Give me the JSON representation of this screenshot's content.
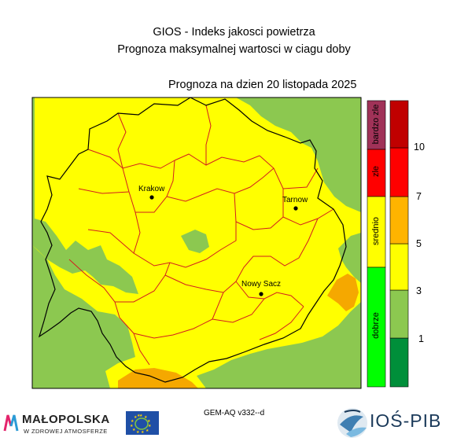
{
  "header": {
    "title_line1": "GIOS - Indeks jakosci powietrza",
    "title_line2": "Prognoza maksymalnej wartosci w ciagu doby",
    "forecast_date": "Prognoza na dzien  20 listopada 2025"
  },
  "cities": [
    {
      "name": "Krakow"
    },
    {
      "name": "Tarnow"
    },
    {
      "name": "Nowy Sacz"
    }
  ],
  "category_bar": [
    {
      "label": "bardzo zle",
      "color": "#a03258"
    },
    {
      "label": "zle",
      "color": "#ff0000"
    },
    {
      "label": "srednio",
      "color": "#ffff00"
    },
    {
      "label": "dobrze",
      "color": "#00ff00"
    }
  ],
  "index_scale": {
    "colors": [
      "#008f3a",
      "#8cc850",
      "#ffff00",
      "#ffb400",
      "#ff0000",
      "#c00000"
    ],
    "tick_labels": [
      "1",
      "3",
      "5",
      "7",
      "10"
    ]
  },
  "map_colors": {
    "index_3_4": "#ffff00",
    "index_2_3": "#8cc850",
    "index_4_5": "#f5a800",
    "borders": "#d21e1e",
    "outer_border": "#000000"
  },
  "footer": {
    "model_version": "GEM-AQ v332--d",
    "malopolska_name": "MAŁOPOLSKA",
    "malopolska_tagline": "W ZDROWEJ ATMOSFERZE",
    "ios_name": "IOŚ-PIB"
  }
}
